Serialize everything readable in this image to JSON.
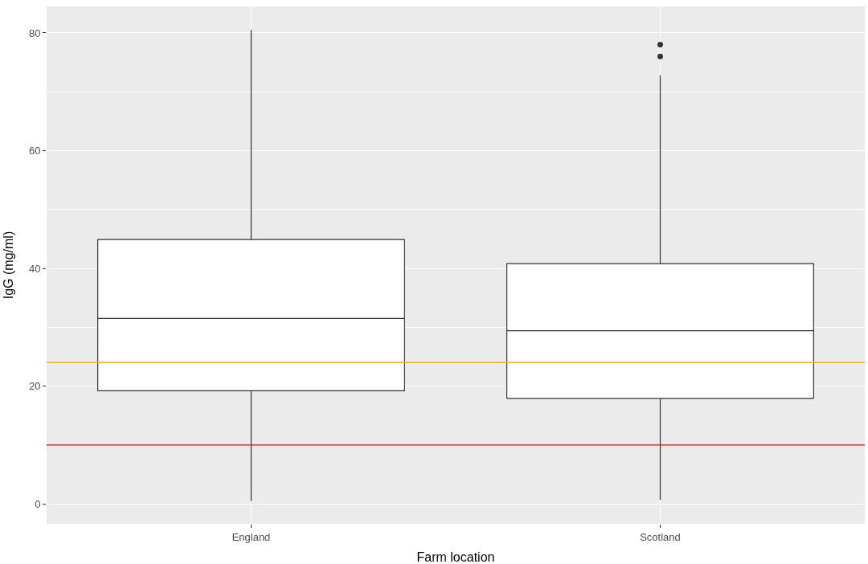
{
  "chart_data": {
    "type": "box",
    "xlabel": "Farm location",
    "ylabel": "IgG (mg/ml)",
    "categories": [
      "England",
      "Scotland"
    ],
    "series": [
      {
        "color": "#333333",
        "boxes": [
          {
            "low": 0.5,
            "q1": 19.2,
            "median": 31.5,
            "q3": 44.9,
            "high": 80.5
          },
          {
            "low": 0.7,
            "q1": 17.9,
            "median": 29.4,
            "q3": 40.8,
            "high": 72.8,
            "outliers": [
              76,
              78
            ]
          }
        ]
      }
    ],
    "ylim": [
      -3.4,
      84.5
    ],
    "yticks": [
      0,
      20,
      40,
      60,
      80
    ],
    "grid": true,
    "ref_lines": [
      {
        "axis": "y",
        "value": 24,
        "label": null,
        "color": "#ffb000"
      },
      {
        "axis": "y",
        "value": 10,
        "label": null,
        "color": "#ff0000"
      }
    ]
  }
}
